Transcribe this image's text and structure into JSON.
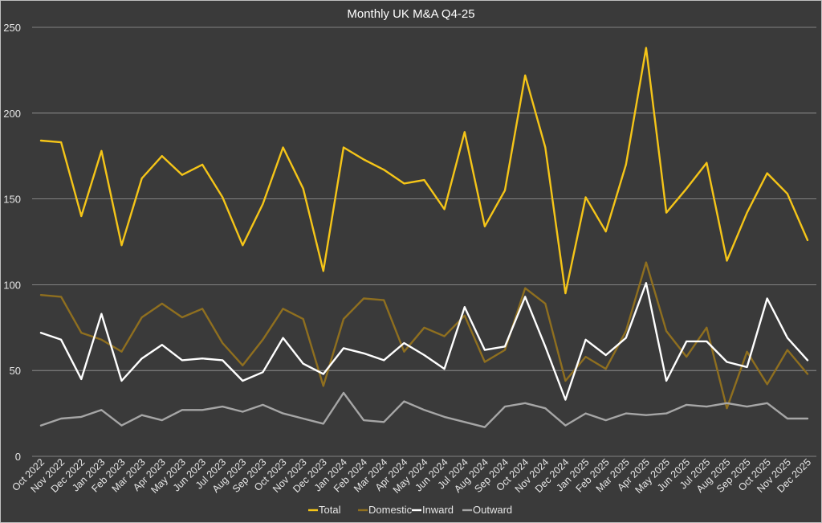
{
  "chart_data": {
    "type": "line",
    "title": "Monthly UK M&A Q4-25",
    "xlabel": "",
    "ylabel": "",
    "ylim": [
      0,
      250
    ],
    "yticks": [
      0,
      50,
      100,
      150,
      200,
      250
    ],
    "grid": true,
    "legend_position": "bottom",
    "categories": [
      "Oct 2022",
      "Nov 2022",
      "Dec 2022",
      "Jan 2023",
      "Feb 2023",
      "Mar 2023",
      "Apr 2023",
      "May 2023",
      "Jun 2023",
      "Jul 2023",
      "Aug 2023",
      "Sep 2023",
      "Oct 2023",
      "Nov 2023",
      "Dec 2023",
      "Jan 2024",
      "Feb 2024",
      "Mar 2024",
      "Apr 2024",
      "May 2024",
      "Jun 2024",
      "Jul 2024",
      "Aug 2024",
      "Sep 2024",
      "Oct 2024",
      "Nov 2024",
      "Dec 2024",
      "Jan 2025",
      "Feb 2025",
      "Mar 2025",
      "Apr 2025",
      "May 2025",
      "Jun 2025",
      "Jul 2025",
      "Aug 2025",
      "Sep 2025",
      "Oct 2025",
      "Nov 2025",
      "Dec 2025"
    ],
    "series": [
      {
        "name": "Total",
        "color": "#f5c518",
        "values": [
          184,
          183,
          140,
          178,
          123,
          162,
          175,
          164,
          170,
          151,
          123,
          147,
          180,
          156,
          108,
          180,
          173,
          167,
          159,
          161,
          144,
          189,
          134,
          155,
          222,
          180,
          95,
          151,
          131,
          170,
          238,
          142,
          156,
          171,
          114,
          142,
          165,
          153,
          126
        ]
      },
      {
        "name": "Domestic",
        "color": "#8f6f1f",
        "values": [
          94,
          93,
          72,
          68,
          61,
          81,
          89,
          81,
          86,
          66,
          53,
          68,
          86,
          80,
          41,
          80,
          92,
          91,
          61,
          75,
          70,
          82,
          55,
          62,
          98,
          89,
          44,
          58,
          51,
          73,
          113,
          73,
          58,
          75,
          28,
          61,
          42,
          62,
          48
        ]
      },
      {
        "name": "Inward",
        "color": "#ffffff",
        "values": [
          72,
          68,
          45,
          83,
          44,
          57,
          65,
          56,
          57,
          56,
          44,
          49,
          69,
          54,
          48,
          63,
          60,
          56,
          66,
          59,
          51,
          87,
          62,
          64,
          93,
          64,
          33,
          68,
          59,
          69,
          101,
          44,
          67,
          67,
          55,
          52,
          92,
          69,
          56
        ]
      },
      {
        "name": "Outward",
        "color": "#a6a6a6",
        "values": [
          18,
          22,
          23,
          27,
          18,
          24,
          21,
          27,
          27,
          29,
          26,
          30,
          25,
          22,
          19,
          37,
          21,
          20,
          32,
          27,
          23,
          20,
          17,
          29,
          31,
          28,
          18,
          25,
          21,
          25,
          24,
          25,
          30,
          29,
          31,
          29,
          31,
          22,
          22
        ]
      }
    ]
  }
}
